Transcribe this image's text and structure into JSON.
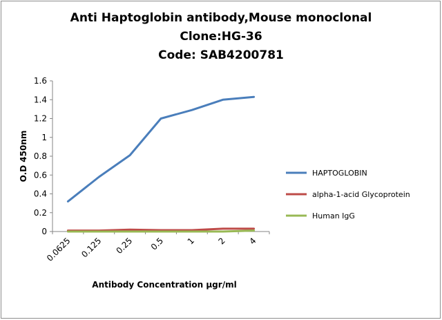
{
  "chart_data": {
    "type": "line",
    "title_lines": [
      "Anti Haptoglobin antibody,Mouse monoclonal",
      "Clone:HG-36",
      "Code: SAB4200781"
    ],
    "categories": [
      "0.0625",
      "0.125",
      "0.25",
      "0.5",
      "1",
      "2",
      "4"
    ],
    "xlabel": "Antibody Concentration µgr/ml",
    "ylabel": "O.D 450nm",
    "ylim": [
      0,
      1.6
    ],
    "yticks": [
      "0",
      "0.2",
      "0.4",
      "0.6",
      "0.8",
      "1",
      "1.2",
      "1.4",
      "1.6"
    ],
    "grid": false,
    "legend_position": "right",
    "series": [
      {
        "name": "HAPTOGLOBIN",
        "color": "#4a7ebb",
        "values": [
          0.32,
          0.58,
          0.81,
          1.2,
          1.29,
          1.4,
          1.43
        ]
      },
      {
        "name": "alpha-1-acid Glycoprotein",
        "color": "#be4b48",
        "values": [
          0.01,
          0.01,
          0.02,
          0.015,
          0.015,
          0.03,
          0.03
        ]
      },
      {
        "name": "Human IgG",
        "color": "#98b954",
        "values": [
          0.0,
          0.0,
          0.0,
          0.0,
          0.0,
          0.0,
          0.01
        ]
      }
    ]
  }
}
